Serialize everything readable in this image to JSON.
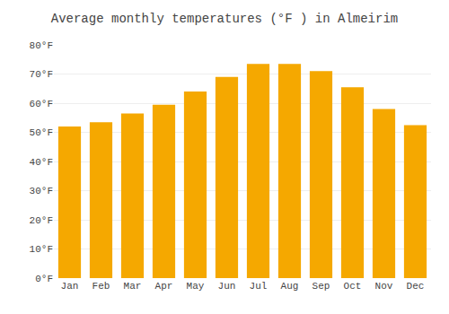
{
  "chart_data": {
    "type": "bar",
    "title": "Average monthly temperatures (°F ) in Almeirim",
    "categories": [
      "Jan",
      "Feb",
      "Mar",
      "Apr",
      "May",
      "Jun",
      "Jul",
      "Aug",
      "Sep",
      "Oct",
      "Nov",
      "Dec"
    ],
    "values": [
      52,
      53.5,
      56.5,
      59.5,
      64,
      69,
      73.5,
      73.5,
      71,
      65.5,
      58,
      52.5
    ],
    "color": "#F5A800",
    "ylim": [
      0,
      80
    ],
    "yticks": [
      {
        "value": 0,
        "label": "0°F"
      },
      {
        "value": 10,
        "label": "10°F"
      },
      {
        "value": 20,
        "label": "20°F"
      },
      {
        "value": 30,
        "label": "30°F"
      },
      {
        "value": 40,
        "label": "40°F"
      },
      {
        "value": 50,
        "label": "50°F"
      },
      {
        "value": 60,
        "label": "60°F"
      },
      {
        "value": 70,
        "label": "70°F"
      },
      {
        "value": 80,
        "label": "80°F"
      }
    ],
    "grid": true
  }
}
